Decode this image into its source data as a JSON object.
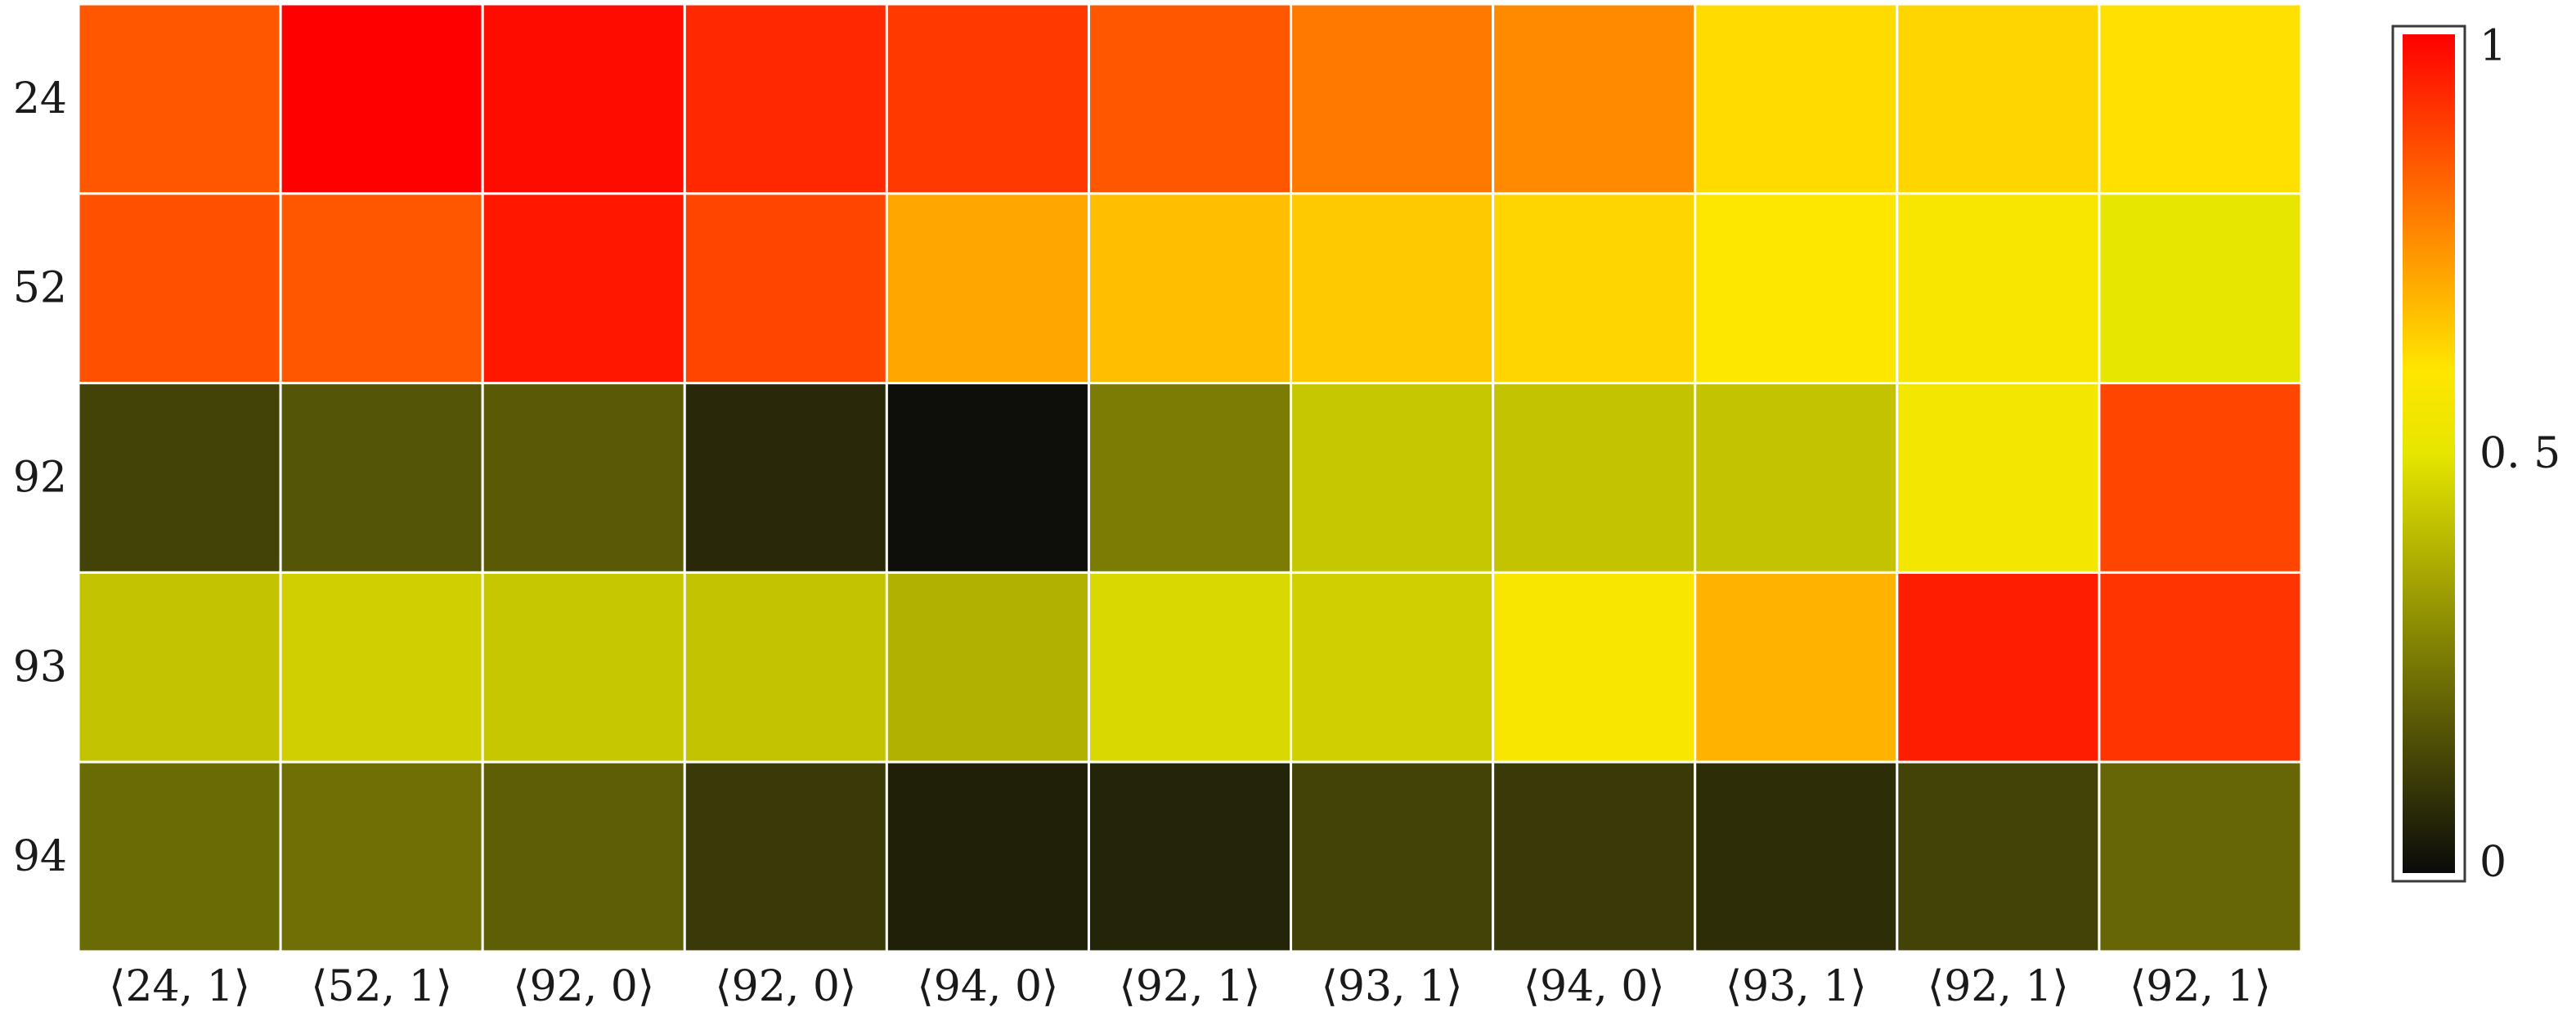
{
  "chart_data": {
    "type": "heatmap",
    "title": "",
    "xlabel": "",
    "ylabel": "",
    "rows": [
      "24",
      "52",
      "92",
      "93",
      "94"
    ],
    "columns": [
      "⟨24, 1⟩",
      "⟨52, 1⟩",
      "⟨92, 0⟩",
      "⟨92, 0⟩",
      "⟨94, 0⟩",
      "⟨92, 1⟩",
      "⟨93, 1⟩",
      "⟨94, 0⟩",
      "⟨93, 1⟩",
      "⟨92, 1⟩",
      "⟨92, 1⟩"
    ],
    "values": [
      [
        0.85,
        1.0,
        0.98,
        0.93,
        0.9,
        0.85,
        0.79,
        0.76,
        0.62,
        0.63,
        0.61
      ],
      [
        0.86,
        0.85,
        0.96,
        0.88,
        0.71,
        0.67,
        0.65,
        0.63,
        0.59,
        0.57,
        0.5
      ],
      [
        0.13,
        0.17,
        0.18,
        0.07,
        0.01,
        0.26,
        0.43,
        0.42,
        0.42,
        0.55,
        0.88
      ],
      [
        0.42,
        0.45,
        0.43,
        0.42,
        0.38,
        0.47,
        0.45,
        0.57,
        0.69,
        0.95,
        0.91
      ],
      [
        0.22,
        0.23,
        0.19,
        0.11,
        0.05,
        0.06,
        0.13,
        0.11,
        0.08,
        0.13,
        0.21
      ]
    ],
    "colorbar": {
      "min": 0,
      "max": 1,
      "ticks": [
        {
          "value": 1,
          "label": "1"
        },
        {
          "value": 0.5,
          "label": "0. 5"
        },
        {
          "value": 0,
          "label": "0"
        }
      ],
      "colors": [
        "#0a0a0a",
        "#e6e600",
        "#ffe600",
        "#ff0000"
      ],
      "stops": [
        0,
        0.5,
        0.6,
        1
      ]
    },
    "grid": true,
    "grid_color": "#ffffff",
    "legend": "colorbar-right"
  }
}
